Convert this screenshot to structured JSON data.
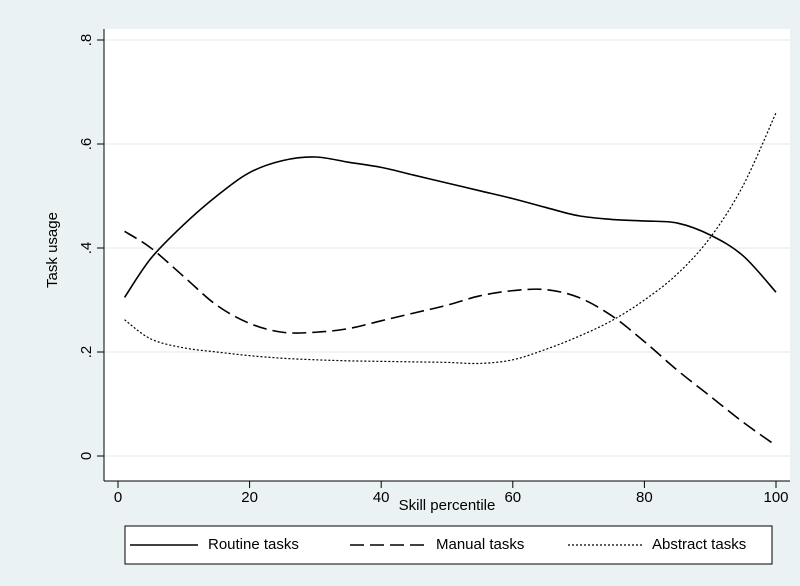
{
  "chart_data": {
    "type": "line",
    "xlabel": "Skill percentile",
    "ylabel": "Task usage",
    "xlim": [
      0,
      100
    ],
    "ylim": [
      0,
      0.8
    ],
    "x_ticks": [
      {
        "value": 0,
        "label": "0"
      },
      {
        "value": 20,
        "label": "20"
      },
      {
        "value": 40,
        "label": "40"
      },
      {
        "value": 60,
        "label": "60"
      },
      {
        "value": 80,
        "label": "80"
      },
      {
        "value": 100,
        "label": "100"
      }
    ],
    "y_ticks": [
      {
        "value": 0,
        "label": "0"
      },
      {
        "value": 0.2,
        "label": ".2"
      },
      {
        "value": 0.4,
        "label": ".4"
      },
      {
        "value": 0.6,
        "label": ".6"
      },
      {
        "value": 0.8,
        "label": ".8"
      }
    ],
    "grid": "horizontal",
    "legend_position": "bottom",
    "series": [
      {
        "name": "Routine tasks",
        "style": "solid",
        "x": [
          1,
          5,
          10,
          15,
          20,
          25,
          30,
          35,
          40,
          45,
          50,
          55,
          60,
          65,
          70,
          75,
          80,
          85,
          90,
          95,
          100
        ],
        "y": [
          0.305,
          0.38,
          0.445,
          0.5,
          0.545,
          0.568,
          0.575,
          0.565,
          0.555,
          0.54,
          0.525,
          0.51,
          0.495,
          0.478,
          0.462,
          0.455,
          0.452,
          0.448,
          0.425,
          0.385,
          0.315
        ]
      },
      {
        "name": "Manual tasks",
        "style": "dashed",
        "x": [
          1,
          5,
          10,
          15,
          20,
          25,
          30,
          35,
          40,
          45,
          50,
          55,
          60,
          65,
          70,
          75,
          80,
          85,
          90,
          95,
          100
        ],
        "y": [
          0.432,
          0.4,
          0.345,
          0.29,
          0.255,
          0.238,
          0.238,
          0.245,
          0.26,
          0.275,
          0.29,
          0.308,
          0.318,
          0.32,
          0.305,
          0.27,
          0.22,
          0.165,
          0.115,
          0.065,
          0.02
        ]
      },
      {
        "name": "Abstract tasks",
        "style": "dotted",
        "x": [
          1,
          5,
          10,
          15,
          20,
          25,
          30,
          35,
          40,
          45,
          50,
          55,
          60,
          65,
          70,
          75,
          80,
          85,
          90,
          95,
          100
        ],
        "y": [
          0.262,
          0.225,
          0.208,
          0.2,
          0.193,
          0.188,
          0.185,
          0.183,
          0.182,
          0.181,
          0.18,
          0.178,
          0.185,
          0.205,
          0.23,
          0.26,
          0.3,
          0.35,
          0.42,
          0.52,
          0.66
        ]
      }
    ]
  }
}
